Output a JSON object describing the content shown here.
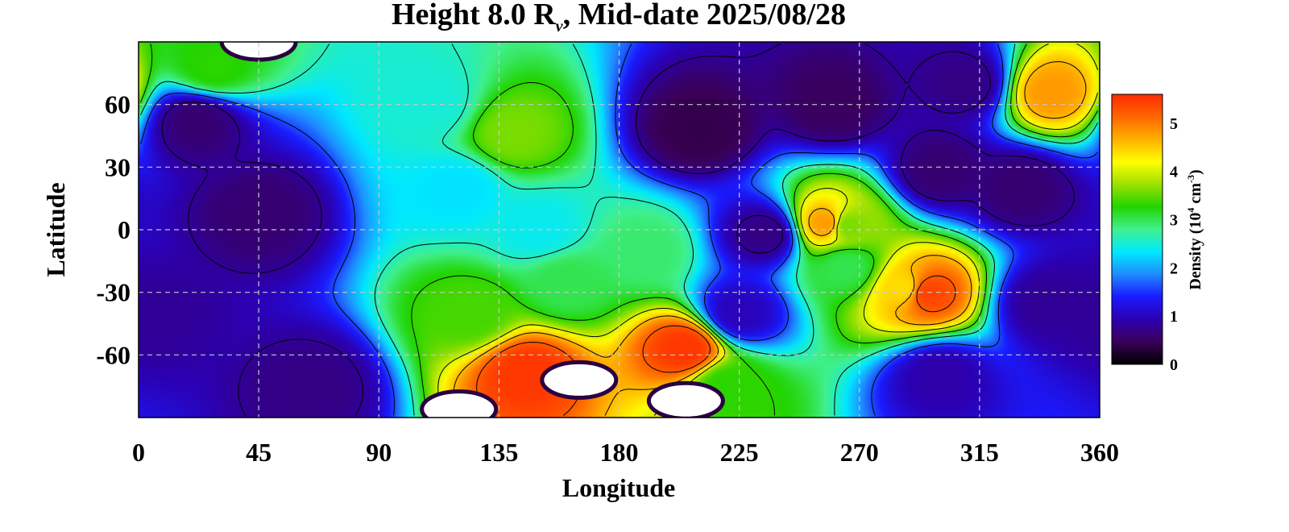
{
  "chart_data": {
    "type": "heatmap",
    "title": {
      "prefix": "Height 8.0 R",
      "subscript": "v",
      "suffix": ", Mid-date 2025/08/28"
    },
    "xlabel": "Longitude",
    "ylabel": "Latitude",
    "xlim": [
      0,
      360
    ],
    "ylim": [
      -90,
      90
    ],
    "x_ticks": [
      0,
      45,
      90,
      135,
      180,
      225,
      270,
      315,
      360
    ],
    "y_ticks": [
      60,
      30,
      0,
      -30,
      -60
    ],
    "y_tick_labels": [
      "60",
      "30",
      "0",
      "-30",
      "-60"
    ],
    "grid": true,
    "colorbar": {
      "label": {
        "prefix": "Density (10",
        "exp1": "4",
        "mid": " cm",
        "exp2": "-3",
        "suffix": ")"
      },
      "range": [
        0,
        5.6
      ],
      "ticks": [
        0,
        1,
        2,
        3,
        4,
        5
      ],
      "colors": [
        "#000000",
        "#3a0058",
        "#2c00b0",
        "#1a1aff",
        "#1f8bff",
        "#00e9ff",
        "#40f08c",
        "#22d400",
        "#9ce000",
        "#ffff00",
        "#ffb000",
        "#ff6600",
        "#ff2a00"
      ],
      "placement": "right"
    },
    "features": [
      {
        "lon": 45,
        "lat": 8,
        "value": 0.6
      },
      {
        "lon": 22,
        "lat": 52,
        "value": 0.6
      },
      {
        "lon": 65,
        "lat": -75,
        "value": 0.7
      },
      {
        "lon": 5,
        "lat": -40,
        "value": 0.8
      },
      {
        "lon": 330,
        "lat": 20,
        "value": 0.6
      },
      {
        "lon": 210,
        "lat": 48,
        "value": 0.4
      },
      {
        "lon": 260,
        "lat": 60,
        "value": 0.5
      },
      {
        "lon": 235,
        "lat": -2,
        "value": 0.7
      },
      {
        "lon": 300,
        "lat": 28,
        "value": 0.6
      },
      {
        "lon": 340,
        "lat": -35,
        "value": 0.8
      },
      {
        "lon": 300,
        "lat": -70,
        "value": 0.9
      },
      {
        "lon": 225,
        "lat": -40,
        "value": 1.0
      },
      {
        "lon": 310,
        "lat": 70,
        "value": 0.7
      },
      {
        "lon": 110,
        "lat": 60,
        "value": 2.5
      },
      {
        "lon": 120,
        "lat": 20,
        "value": 2.3
      },
      {
        "lon": 150,
        "lat": 0,
        "value": 2.4
      },
      {
        "lon": 28,
        "lat": 78,
        "value": 3.3
      },
      {
        "lon": 140,
        "lat": 46,
        "value": 3.6
      },
      {
        "lon": 125,
        "lat": -40,
        "value": 3.4
      },
      {
        "lon": 160,
        "lat": -25,
        "value": 3.0
      },
      {
        "lon": 190,
        "lat": -10,
        "value": 2.9
      },
      {
        "lon": 220,
        "lat": -75,
        "value": 3.3
      },
      {
        "lon": 265,
        "lat": 2,
        "value": 3.6
      },
      {
        "lon": 265,
        "lat": -18,
        "value": 3.0
      },
      {
        "lon": 287,
        "lat": -28,
        "value": 4.4
      },
      {
        "lon": 342,
        "lat": 66,
        "value": 4.8
      },
      {
        "lon": 145,
        "lat": -68,
        "value": 5.5
      },
      {
        "lon": 205,
        "lat": -57,
        "value": 5.5
      },
      {
        "lon": 295,
        "lat": -30,
        "value": 5.4
      },
      {
        "lon": 258,
        "lat": 3,
        "value": 4.8
      }
    ],
    "saturated_regions": [
      {
        "lon": 45,
        "lat": 90
      },
      {
        "lon": 165,
        "lat": -72
      },
      {
        "lon": 120,
        "lat": -86
      },
      {
        "lon": 205,
        "lat": -82
      }
    ]
  }
}
